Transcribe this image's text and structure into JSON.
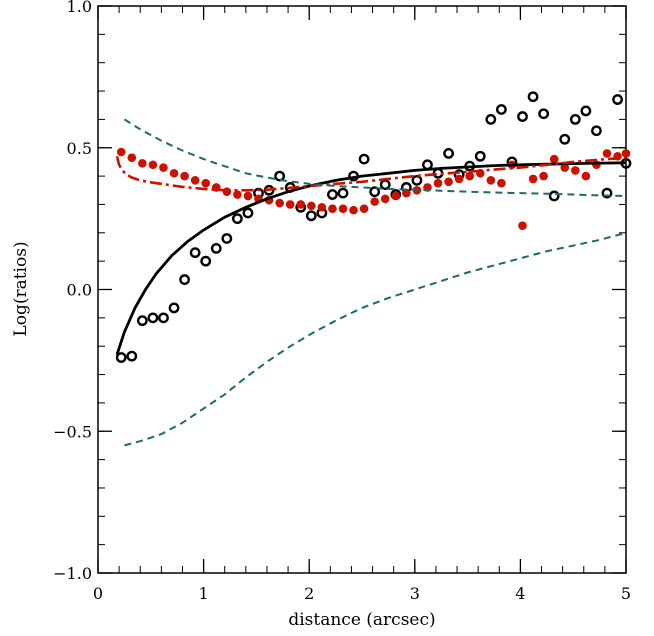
{
  "chart_data": {
    "type": "scatter",
    "title": "",
    "xlabel": "distance (arcsec)",
    "ylabel": "Log(ratios)",
    "xlim": [
      0,
      5
    ],
    "ylim": [
      -1.0,
      1.0
    ],
    "x_ticks": [
      0,
      1,
      2,
      3,
      4,
      5
    ],
    "x_tick_labels": [
      "0",
      "1",
      "2",
      "3",
      "4",
      "5"
    ],
    "y_ticks": [
      -1.0,
      -0.5,
      0.0,
      0.5,
      1.0
    ],
    "y_tick_labels": [
      "−1.0",
      "−0.5",
      "0.0",
      "0.5",
      "1.0"
    ],
    "grid": false,
    "legend": "none",
    "series": [
      {
        "kind": "open-circle",
        "color": "#000000",
        "x": [
          0.22,
          0.32,
          0.42,
          0.52,
          0.62,
          0.72,
          0.82,
          0.92,
          1.02,
          1.12,
          1.22,
          1.32,
          1.42,
          1.52,
          1.62,
          1.72,
          1.82,
          1.92,
          2.02,
          2.12,
          2.22,
          2.32,
          2.42,
          2.52,
          2.62,
          2.72,
          2.82,
          2.92,
          3.02,
          3.12,
          3.22,
          3.32,
          3.42,
          3.52,
          3.62,
          3.72,
          3.82,
          3.92,
          4.02,
          4.12,
          4.22,
          4.32,
          4.42,
          4.52,
          4.62,
          4.72,
          4.82,
          4.92,
          5.0
        ],
        "y": [
          -0.24,
          -0.235,
          -0.11,
          -0.1,
          -0.1,
          -0.065,
          0.035,
          0.13,
          0.1,
          0.145,
          0.18,
          0.25,
          0.27,
          0.34,
          0.35,
          0.4,
          0.36,
          0.29,
          0.26,
          0.27,
          0.335,
          0.34,
          0.4,
          0.46,
          0.345,
          0.37,
          0.335,
          0.36,
          0.385,
          0.44,
          0.41,
          0.48,
          0.405,
          0.435,
          0.47,
          0.6,
          0.635,
          0.45,
          0.61,
          0.68,
          0.62,
          0.33,
          0.53,
          0.6,
          0.63,
          0.56,
          0.34,
          0.67,
          0.445
        ]
      },
      {
        "kind": "filled-circle",
        "color": "#cc1100",
        "x": [
          0.22,
          0.32,
          0.42,
          0.52,
          0.62,
          0.72,
          0.82,
          0.92,
          1.02,
          1.12,
          1.22,
          1.32,
          1.42,
          1.52,
          1.62,
          1.72,
          1.82,
          1.92,
          2.02,
          2.12,
          2.22,
          2.32,
          2.42,
          2.52,
          2.62,
          2.72,
          2.82,
          2.92,
          3.02,
          3.12,
          3.22,
          3.32,
          3.42,
          3.52,
          3.62,
          3.72,
          3.82,
          3.92,
          4.02,
          4.12,
          4.22,
          4.32,
          4.42,
          4.52,
          4.62,
          4.72,
          4.82,
          4.92,
          5.0
        ],
        "y": [
          0.485,
          0.465,
          0.445,
          0.44,
          0.43,
          0.41,
          0.4,
          0.385,
          0.375,
          0.36,
          0.345,
          0.335,
          0.33,
          0.32,
          0.315,
          0.305,
          0.3,
          0.3,
          0.295,
          0.29,
          0.285,
          0.285,
          0.28,
          0.285,
          0.31,
          0.32,
          0.33,
          0.34,
          0.35,
          0.36,
          0.375,
          0.38,
          0.39,
          0.4,
          0.41,
          0.385,
          0.375,
          0.44,
          0.225,
          0.39,
          0.4,
          0.46,
          0.43,
          0.42,
          0.4,
          0.44,
          0.48,
          0.47,
          0.48
        ]
      },
      {
        "kind": "solid-line",
        "color": "#000000",
        "x": [
          0.18,
          0.25,
          0.35,
          0.45,
          0.55,
          0.7,
          0.85,
          1.0,
          1.2,
          1.4,
          1.6,
          1.8,
          2.0,
          2.25,
          2.5,
          2.75,
          3.0,
          3.25,
          3.5,
          3.75,
          4.0,
          4.25,
          4.5,
          4.75,
          5.0
        ],
        "y": [
          -0.23,
          -0.15,
          -0.065,
          0.0,
          0.055,
          0.12,
          0.17,
          0.21,
          0.255,
          0.29,
          0.32,
          0.345,
          0.365,
          0.385,
          0.4,
          0.41,
          0.42,
          0.427,
          0.432,
          0.437,
          0.44,
          0.442,
          0.444,
          0.446,
          0.447
        ]
      },
      {
        "kind": "dash-dot-line",
        "color": "#cc1100",
        "x": [
          0.18,
          0.2,
          0.23,
          0.27,
          0.32,
          0.4,
          0.5,
          0.65,
          0.8,
          1.0,
          1.2,
          1.4,
          1.6,
          1.8,
          2.0,
          2.25,
          2.5,
          2.75,
          3.0,
          3.25,
          3.5,
          3.75,
          4.0,
          4.25,
          4.5,
          4.75,
          5.0
        ],
        "y": [
          0.47,
          0.44,
          0.42,
          0.405,
          0.395,
          0.385,
          0.378,
          0.37,
          0.362,
          0.355,
          0.35,
          0.35,
          0.352,
          0.358,
          0.365,
          0.373,
          0.38,
          0.39,
          0.4,
          0.408,
          0.415,
          0.423,
          0.43,
          0.44,
          0.45,
          0.458,
          0.465
        ]
      },
      {
        "kind": "dashed-line",
        "color": "#1a6b6b",
        "x": [
          0.25,
          0.4,
          0.6,
          0.8,
          1.0,
          1.2,
          1.4,
          1.6,
          1.8,
          2.0,
          2.25,
          2.5,
          2.75,
          3.0,
          3.25,
          3.5,
          3.75,
          4.0,
          4.25,
          4.5,
          4.75,
          5.0
        ],
        "y": [
          0.6,
          0.565,
          0.525,
          0.49,
          0.46,
          0.435,
          0.41,
          0.395,
          0.382,
          0.373,
          0.365,
          0.36,
          0.355,
          0.352,
          0.348,
          0.345,
          0.342,
          0.34,
          0.338,
          0.335,
          0.332,
          0.33
        ]
      },
      {
        "kind": "dashed-line",
        "color": "#1a6b6b",
        "x": [
          0.25,
          0.4,
          0.6,
          0.8,
          1.0,
          1.2,
          1.4,
          1.6,
          1.8,
          2.0,
          2.25,
          2.5,
          2.75,
          3.0,
          3.25,
          3.5,
          3.75,
          4.0,
          4.25,
          4.5,
          4.75,
          5.0
        ],
        "y": [
          -0.55,
          -0.535,
          -0.51,
          -0.47,
          -0.42,
          -0.37,
          -0.31,
          -0.255,
          -0.205,
          -0.16,
          -0.11,
          -0.065,
          -0.03,
          0.0,
          0.03,
          0.06,
          0.085,
          0.11,
          0.135,
          0.155,
          0.175,
          0.2
        ]
      }
    ]
  }
}
